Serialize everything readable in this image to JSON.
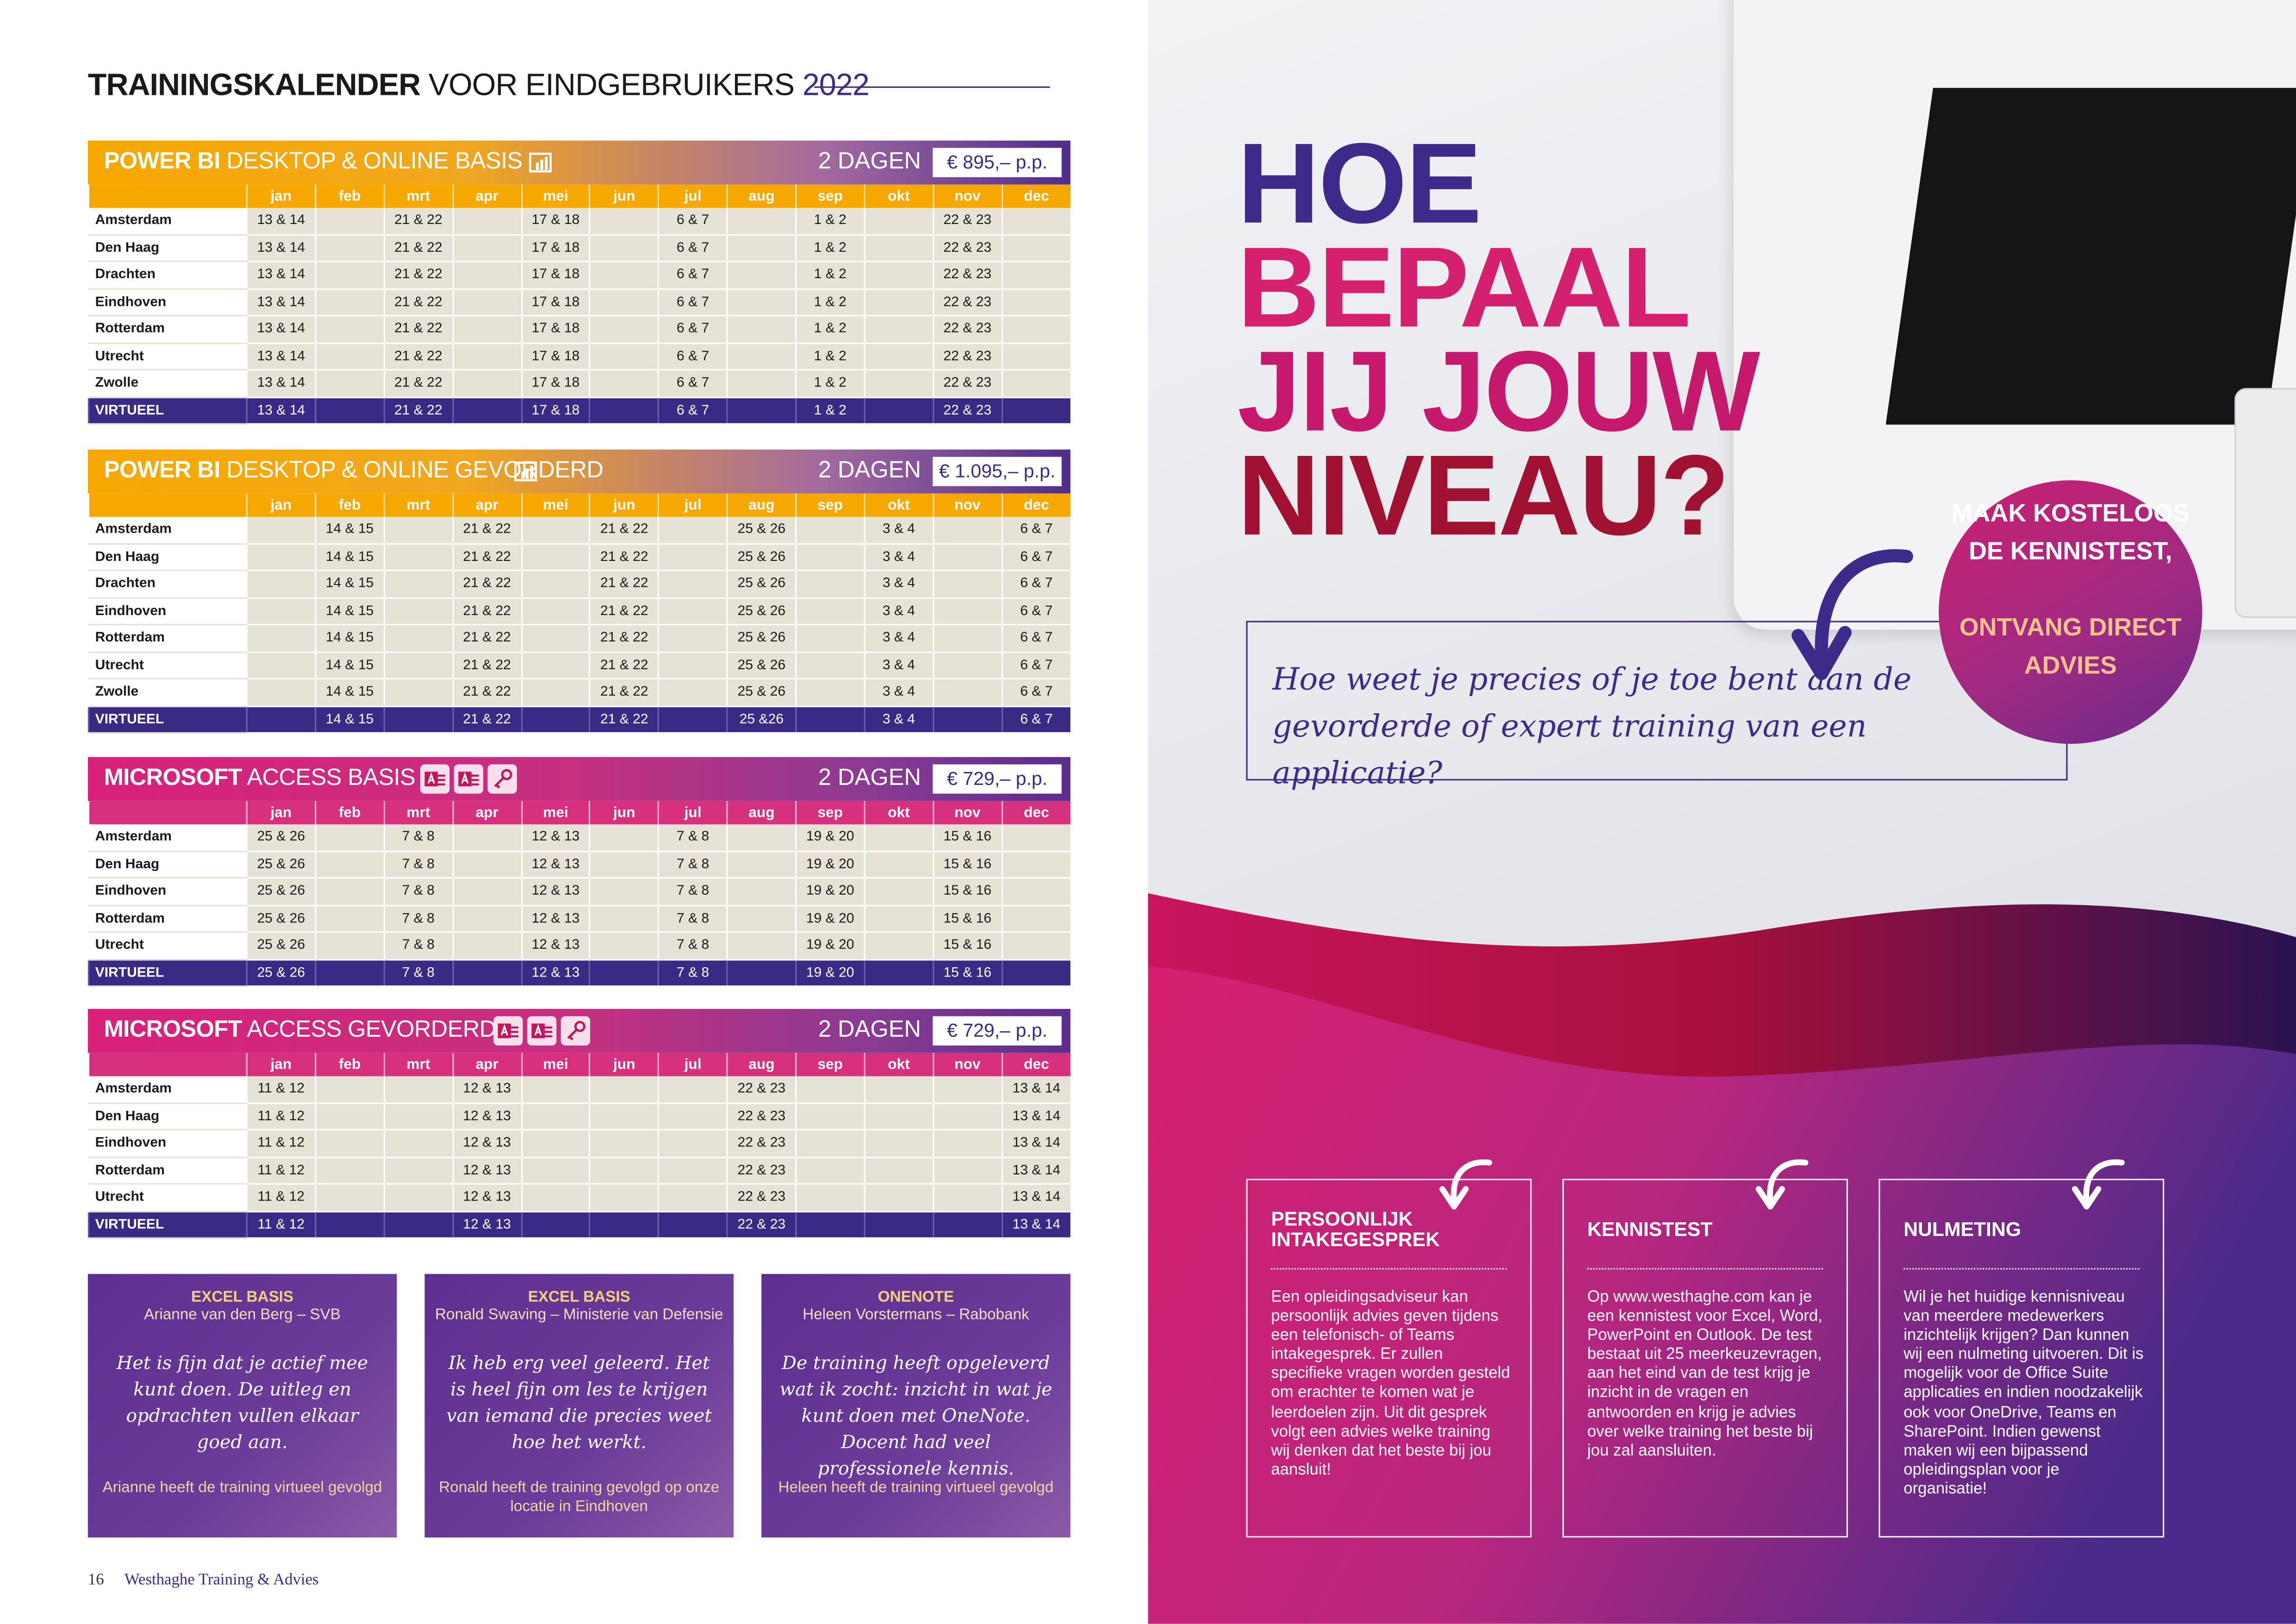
{
  "page": {
    "title_bold": "TRAININGSKALENDER",
    "title_rest": " VOOR EINDGEBRUIKERS ",
    "title_year": "2022",
    "footer_page": "16",
    "footer_brand": "Westhaghe Training & Advies"
  },
  "months": [
    "jan",
    "feb",
    "mrt",
    "apr",
    "mei",
    "jun",
    "jul",
    "aug",
    "sep",
    "okt",
    "nov",
    "dec"
  ],
  "courses": [
    {
      "title_a": "POWER BI",
      "title_b": " DESKTOP & ONLINE BASIS",
      "theme": "pbi",
      "icons": [
        "power-bi-icon"
      ],
      "days": "2 DAGEN",
      "price": "€ 895,– p.p.",
      "rows": [
        {
          "city": "Amsterdam",
          "dates": [
            "13 & 14",
            "",
            "21 & 22",
            "",
            "17 & 18",
            "",
            "6 & 7",
            "",
            "1 & 2",
            "",
            "22 & 23",
            ""
          ]
        },
        {
          "city": "Den Haag",
          "dates": [
            "13 & 14",
            "",
            "21 & 22",
            "",
            "17 & 18",
            "",
            "6 & 7",
            "",
            "1 & 2",
            "",
            "22 & 23",
            ""
          ]
        },
        {
          "city": "Drachten",
          "dates": [
            "13 & 14",
            "",
            "21 & 22",
            "",
            "17 & 18",
            "",
            "6 & 7",
            "",
            "1 & 2",
            "",
            "22 & 23",
            ""
          ]
        },
        {
          "city": "Eindhoven",
          "dates": [
            "13 & 14",
            "",
            "21 & 22",
            "",
            "17 & 18",
            "",
            "6 & 7",
            "",
            "1 & 2",
            "",
            "22 & 23",
            ""
          ]
        },
        {
          "city": "Rotterdam",
          "dates": [
            "13 & 14",
            "",
            "21 & 22",
            "",
            "17 & 18",
            "",
            "6 & 7",
            "",
            "1 & 2",
            "",
            "22 & 23",
            ""
          ]
        },
        {
          "city": "Utrecht",
          "dates": [
            "13 & 14",
            "",
            "21 & 22",
            "",
            "17 & 18",
            "",
            "6 & 7",
            "",
            "1 & 2",
            "",
            "22 & 23",
            ""
          ]
        },
        {
          "city": "Zwolle",
          "dates": [
            "13 & 14",
            "",
            "21 & 22",
            "",
            "17 & 18",
            "",
            "6 & 7",
            "",
            "1 & 2",
            "",
            "22 & 23",
            ""
          ]
        },
        {
          "city": "VIRTUEEL",
          "virtual": true,
          "dates": [
            "13 & 14",
            "",
            "21 & 22",
            "",
            "17 & 18",
            "",
            "6 & 7",
            "",
            "1 & 2",
            "",
            "22 & 23",
            ""
          ]
        }
      ]
    },
    {
      "title_a": "POWER BI",
      "title_b": " DESKTOP & ONLINE GEVORDERD",
      "theme": "pbi",
      "icons": [
        "power-bi-icon"
      ],
      "days": "2 DAGEN",
      "price": "€ 1.095,– p.p.",
      "rows": [
        {
          "city": "Amsterdam",
          "dates": [
            "",
            "14 & 15",
            "",
            "21 & 22",
            "",
            "21 & 22",
            "",
            "25 & 26",
            "",
            "3 & 4",
            "",
            "6 & 7"
          ]
        },
        {
          "city": "Den Haag",
          "dates": [
            "",
            "14 & 15",
            "",
            "21 & 22",
            "",
            "21 & 22",
            "",
            "25 & 26",
            "",
            "3 & 4",
            "",
            "6 & 7"
          ]
        },
        {
          "city": "Drachten",
          "dates": [
            "",
            "14 & 15",
            "",
            "21 & 22",
            "",
            "21 & 22",
            "",
            "25 & 26",
            "",
            "3 & 4",
            "",
            "6 & 7"
          ]
        },
        {
          "city": "Eindhoven",
          "dates": [
            "",
            "14 & 15",
            "",
            "21 & 22",
            "",
            "21 & 22",
            "",
            "25 & 26",
            "",
            "3 & 4",
            "",
            "6 & 7"
          ]
        },
        {
          "city": "Rotterdam",
          "dates": [
            "",
            "14 & 15",
            "",
            "21 & 22",
            "",
            "21 & 22",
            "",
            "25 & 26",
            "",
            "3 & 4",
            "",
            "6 & 7"
          ]
        },
        {
          "city": "Utrecht",
          "dates": [
            "",
            "14 & 15",
            "",
            "21 & 22",
            "",
            "21 & 22",
            "",
            "25 & 26",
            "",
            "3 & 4",
            "",
            "6 & 7"
          ]
        },
        {
          "city": "Zwolle",
          "dates": [
            "",
            "14 & 15",
            "",
            "21 & 22",
            "",
            "21 & 22",
            "",
            "25 & 26",
            "",
            "3 & 4",
            "",
            "6 & 7"
          ]
        },
        {
          "city": "VIRTUEEL",
          "virtual": true,
          "dates": [
            "",
            "14 & 15",
            "",
            "21 & 22",
            "",
            "21 & 22",
            "",
            "25 &26",
            "",
            "3 & 4",
            "",
            "6 & 7"
          ]
        }
      ]
    },
    {
      "title_a": "MICROSOFT",
      "title_b": " ACCESS BASIS",
      "theme": "acc",
      "icons": [
        "access-icon",
        "access-icon",
        "access-key-icon"
      ],
      "days": "2 DAGEN",
      "price": "€ 729,– p.p.",
      "rows": [
        {
          "city": "Amsterdam",
          "dates": [
            "25 & 26",
            "",
            "7 & 8",
            "",
            "12 & 13",
            "",
            "7 & 8",
            "",
            "19 & 20",
            "",
            "15 & 16",
            ""
          ]
        },
        {
          "city": "Den Haag",
          "dates": [
            "25 & 26",
            "",
            "7 & 8",
            "",
            "12 & 13",
            "",
            "7 & 8",
            "",
            "19 & 20",
            "",
            "15 & 16",
            ""
          ]
        },
        {
          "city": "Eindhoven",
          "dates": [
            "25 & 26",
            "",
            "7 & 8",
            "",
            "12 & 13",
            "",
            "7 & 8",
            "",
            "19 & 20",
            "",
            "15 & 16",
            ""
          ]
        },
        {
          "city": "Rotterdam",
          "dates": [
            "25 & 26",
            "",
            "7 & 8",
            "",
            "12 & 13",
            "",
            "7 & 8",
            "",
            "19 & 20",
            "",
            "15 & 16",
            ""
          ]
        },
        {
          "city": "Utrecht",
          "dates": [
            "25 & 26",
            "",
            "7 & 8",
            "",
            "12 & 13",
            "",
            "7 & 8",
            "",
            "19 & 20",
            "",
            "15 & 16",
            ""
          ]
        },
        {
          "city": "VIRTUEEL",
          "virtual": true,
          "dates": [
            "25 & 26",
            "",
            "7 & 8",
            "",
            "12 & 13",
            "",
            "7 & 8",
            "",
            "19 & 20",
            "",
            "15 & 16",
            ""
          ]
        }
      ]
    },
    {
      "title_a": "MICROSOFT",
      "title_b": " ACCESS GEVORDERD",
      "theme": "acc",
      "icons": [
        "access-icon",
        "access-icon",
        "access-key-icon"
      ],
      "days": "2 DAGEN",
      "price": "€ 729,– p.p.",
      "rows": [
        {
          "city": "Amsterdam",
          "dates": [
            "11 & 12",
            "",
            "",
            "12 & 13",
            "",
            "",
            "",
            "22 & 23",
            "",
            "",
            "",
            "13 & 14"
          ]
        },
        {
          "city": "Den Haag",
          "dates": [
            "11 & 12",
            "",
            "",
            "12 & 13",
            "",
            "",
            "",
            "22 & 23",
            "",
            "",
            "",
            "13 & 14"
          ]
        },
        {
          "city": "Eindhoven",
          "dates": [
            "11 & 12",
            "",
            "",
            "12 & 13",
            "",
            "",
            "",
            "22 & 23",
            "",
            "",
            "",
            "13 & 14"
          ]
        },
        {
          "city": "Rotterdam",
          "dates": [
            "11 & 12",
            "",
            "",
            "12 & 13",
            "",
            "",
            "",
            "22 & 23",
            "",
            "",
            "",
            "13 & 14"
          ]
        },
        {
          "city": "Utrecht",
          "dates": [
            "11 & 12",
            "",
            "",
            "12 & 13",
            "",
            "",
            "",
            "22 & 23",
            "",
            "",
            "",
            "13 & 14"
          ]
        },
        {
          "city": "VIRTUEEL",
          "virtual": true,
          "dates": [
            "11 & 12",
            "",
            "",
            "12 & 13",
            "",
            "",
            "",
            "22 & 23",
            "",
            "",
            "",
            "13 & 14"
          ]
        }
      ]
    }
  ],
  "testimonials": [
    {
      "course": "EXCEL BASIS",
      "person": "Arianne van den Berg – SVB",
      "quote": "Het is fijn dat je actief mee kunt doen. De uitleg en opdrachten vullen elkaar goed aan.",
      "footnote": "Arianne heeft de training virtueel gevolgd"
    },
    {
      "course": "EXCEL BASIS",
      "person": "Ronald Swaving – Ministerie van Defensie",
      "quote": "Ik heb erg veel geleerd. Het is heel fijn om les te krijgen van iemand die precies weet hoe het werkt.",
      "footnote": "Ronald heeft de training gevolgd op onze locatie in Eindhoven"
    },
    {
      "course": "ONENOTE",
      "person": "Heleen Vorstermans – Rabobank",
      "quote": "De training heeft opgeleverd wat ik zocht: inzicht in wat je kunt doen met OneNote. Docent had veel professionele kennis.",
      "footnote": "Heleen heeft de training virtueel gevolgd"
    }
  ],
  "right": {
    "headline": [
      "HOE",
      "BEPAAL",
      "JIJ JOUW",
      "NIVEAU?"
    ],
    "question": "Hoe weet je precies of je toe bent aan de gevorderde of expert training van een applicatie?",
    "circle_top": "MAAK KOSTELOOS DE KENNISTEST,",
    "circle_bottom": "ONTVANG DIRECT ADVIES",
    "boxes": [
      {
        "title": "PERSOONLIJK INTAKEGESPREK",
        "text": "Een opleidingsadviseur kan persoonlijk advies geven tijdens een telefonisch- of Teams intakegesprek. Er zullen specifieke vragen worden gesteld om erachter te komen wat je leerdoelen zijn. Uit dit gesprek volgt een advies welke training wij denken dat het beste bij jou aansluit!"
      },
      {
        "title": "KENNISTEST",
        "text": "Op www.westhaghe.com kan je een kennistest voor Excel, Word, PowerPoint en Outlook. De test bestaat uit 25 meerkeuzevragen, aan het eind van de test krijg je inzicht in de vragen en antwoorden en krijg je advies over welke training het beste bij jou zal aansluiten."
      },
      {
        "title": "NULMETING",
        "text": "Wil je het huidige kennisniveau van meerdere medewerkers inzichtelijk krijgen? Dan kunnen wij een nulmeting uitvoeren. Dit is mogelijk voor de Office Suite applicaties en indien noodzakelijk ook voor OneDrive, Teams en SharePoint. Indien gewenst maken wij een bijpassend opleidingsplan voor je organisatie!"
      }
    ]
  },
  "colors": {
    "purple": "#3d2a8a",
    "orange": "#f6a800",
    "pink": "#d4206f",
    "dark_red": "#a11132",
    "cell_bg": "#e6e3d6"
  }
}
